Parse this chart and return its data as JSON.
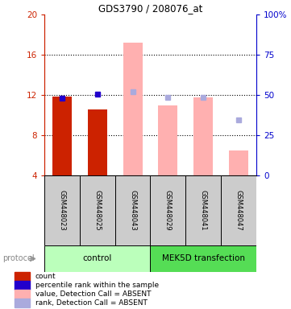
{
  "title": "GDS3790 / 208076_at",
  "samples": [
    "GSM448023",
    "GSM448025",
    "GSM448043",
    "GSM448029",
    "GSM448041",
    "GSM448047"
  ],
  "ylim_left": [
    4,
    20
  ],
  "ylim_right": [
    0,
    100
  ],
  "yticks_left": [
    4,
    8,
    12,
    16,
    20
  ],
  "ytick_labels_left": [
    "4",
    "8",
    "12",
    "16",
    "20"
  ],
  "ytick_labels_right": [
    "0",
    "25",
    "50",
    "75",
    "100%"
  ],
  "red_bars": [
    11.8,
    10.6,
    null,
    null,
    null,
    null
  ],
  "blue_squares": [
    11.7,
    12.1,
    null,
    null,
    null,
    null
  ],
  "pink_bars": [
    null,
    null,
    17.2,
    11.0,
    11.75,
    6.5
  ],
  "lightblue_squares": [
    null,
    null,
    12.3,
    11.75,
    11.75,
    9.5
  ],
  "bar_width": 0.55,
  "red_color": "#cc2200",
  "blue_color": "#2200cc",
  "pink_color": "#ffb0b0",
  "lightblue_color": "#aaaadd",
  "legend_items": [
    {
      "label": "count",
      "color": "#cc2200"
    },
    {
      "label": "percentile rank within the sample",
      "color": "#2200cc"
    },
    {
      "label": "value, Detection Call = ABSENT",
      "color": "#ffb0b0"
    },
    {
      "label": "rank, Detection Call = ABSENT",
      "color": "#aaaadd"
    }
  ],
  "bar_base": 4,
  "dotted_lines": [
    8,
    12,
    16
  ],
  "ctrl_color": "#bbffbb",
  "mek_color": "#55dd55",
  "sample_box_color": "#cccccc",
  "left_axis_color": "#cc2200",
  "right_axis_color": "#0000cc"
}
